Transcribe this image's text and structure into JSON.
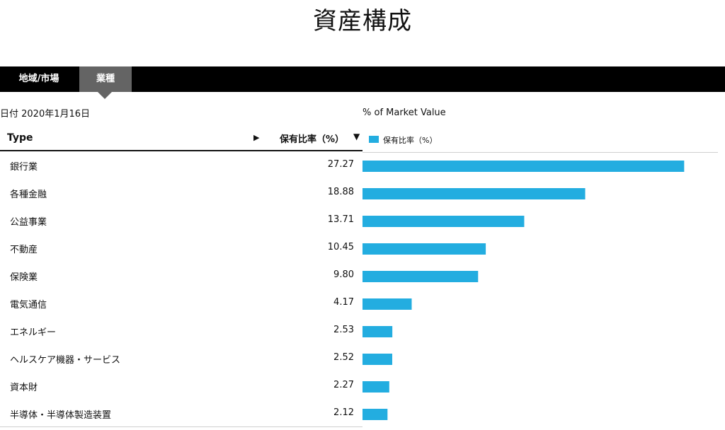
{
  "page": {
    "title": "資産構成"
  },
  "tabs": [
    {
      "label": "地域/市場",
      "selected": false
    },
    {
      "label": "業種",
      "selected": true
    }
  ],
  "date_text": "日付 2020年1月16日",
  "table": {
    "col_type": "Type",
    "col_value": "保有比率（%）",
    "play_icon": "play-icon",
    "sort_icon": "sort-desc-icon"
  },
  "chart_data": {
    "type": "bar",
    "orientation": "horizontal",
    "title": "% of Market Value",
    "legend": {
      "label": "保有比率（%）",
      "placement": "top-left"
    },
    "series": [
      {
        "name": "保有比率（%）",
        "color": "#23ade0"
      }
    ],
    "categories": [
      "銀行業",
      "各種金融",
      "公益事業",
      "不動産",
      "保険業",
      "電気通信",
      "エネルギー",
      "ヘルスケア機器・サービス",
      "資本財",
      "半導体・半導体製造装置"
    ],
    "values": [
      27.27,
      18.88,
      13.71,
      10.45,
      9.8,
      4.17,
      2.53,
      2.52,
      2.27,
      2.12
    ],
    "value_labels": [
      "27.27",
      "18.88",
      "13.71",
      "10.45",
      "9.80",
      "4.17",
      "2.53",
      "2.52",
      "2.27",
      "2.12"
    ],
    "grid": false
  }
}
